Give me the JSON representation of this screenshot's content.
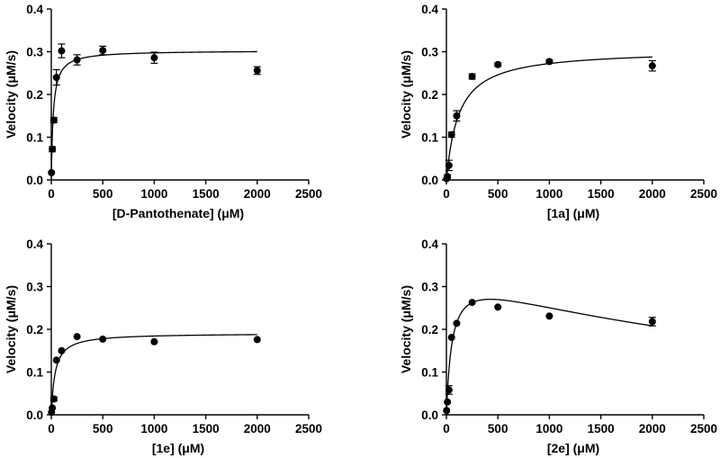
{
  "chart_data": [
    {
      "type": "scatter",
      "xlabel": "[D-Pantothenate] (μM)",
      "ylabel": "Velocity (μM/s)",
      "xlim": [
        0,
        2500
      ],
      "ylim": [
        0,
        0.4
      ],
      "xticks": [
        0,
        500,
        1000,
        1500,
        2000,
        2500
      ],
      "yticks": [
        0.0,
        0.1,
        0.2,
        0.3,
        0.4
      ],
      "grid": false,
      "points": [
        {
          "x": 2,
          "y": 0.017,
          "err": 0
        },
        {
          "x": 10,
          "y": 0.072,
          "err": 0.006
        },
        {
          "x": 25,
          "y": 0.14,
          "err": 0.006
        },
        {
          "x": 50,
          "y": 0.24,
          "err": 0.018
        },
        {
          "x": 100,
          "y": 0.302,
          "err": 0.016
        },
        {
          "x": 250,
          "y": 0.281,
          "err": 0.012
        },
        {
          "x": 500,
          "y": 0.303,
          "err": 0.01
        },
        {
          "x": 1000,
          "y": 0.286,
          "err": 0.013
        },
        {
          "x": 2000,
          "y": 0.256,
          "err": 0.009
        }
      ],
      "fit": {
        "model": "michaelis-menten",
        "vmax": 0.303,
        "km": 19,
        "x_end": 2000
      }
    },
    {
      "type": "scatter",
      "xlabel": "[1a] (μM)",
      "ylabel": "Velocity (μM/s)",
      "xlim": [
        0,
        2500
      ],
      "ylim": [
        0,
        0.4
      ],
      "xticks": [
        0,
        500,
        1000,
        1500,
        2000,
        2500
      ],
      "yticks": [
        0.0,
        0.1,
        0.2,
        0.3,
        0.4
      ],
      "grid": false,
      "points": [
        {
          "x": 2,
          "y": 0.003,
          "err": 0
        },
        {
          "x": 10,
          "y": 0.008,
          "err": 0.004
        },
        {
          "x": 25,
          "y": 0.034,
          "err": 0.012
        },
        {
          "x": 50,
          "y": 0.106,
          "err": 0.006
        },
        {
          "x": 100,
          "y": 0.15,
          "err": 0.012
        },
        {
          "x": 250,
          "y": 0.242,
          "err": 0.006
        },
        {
          "x": 500,
          "y": 0.27,
          "err": 0.004
        },
        {
          "x": 1000,
          "y": 0.277,
          "err": 0.004
        },
        {
          "x": 2000,
          "y": 0.267,
          "err": 0.012
        }
      ],
      "fit": {
        "model": "michaelis-menten",
        "vmax": 0.305,
        "km": 120,
        "x_end": 2000
      }
    },
    {
      "type": "scatter",
      "xlabel": "[1e] (μM)",
      "ylabel": "Velocity (μM/s)",
      "xlim": [
        0,
        2500
      ],
      "ylim": [
        0,
        0.4
      ],
      "xticks": [
        0,
        500,
        1000,
        1500,
        2000,
        2500
      ],
      "yticks": [
        0.0,
        0.1,
        0.2,
        0.3,
        0.4
      ],
      "grid": false,
      "points": [
        {
          "x": 2,
          "y": 0.006,
          "err": 0
        },
        {
          "x": 10,
          "y": 0.016,
          "err": 0
        },
        {
          "x": 25,
          "y": 0.037,
          "err": 0.005
        },
        {
          "x": 50,
          "y": 0.128,
          "err": 0
        },
        {
          "x": 100,
          "y": 0.15,
          "err": 0
        },
        {
          "x": 250,
          "y": 0.183,
          "err": 0
        },
        {
          "x": 500,
          "y": 0.177,
          "err": 0
        },
        {
          "x": 1000,
          "y": 0.171,
          "err": 0
        },
        {
          "x": 2000,
          "y": 0.176,
          "err": 0
        }
      ],
      "fit": {
        "model": "michaelis-menten",
        "vmax": 0.191,
        "km": 36,
        "x_end": 2000
      }
    },
    {
      "type": "scatter",
      "xlabel": "[2e] (μM)",
      "ylabel": "Velocity (μM/s)",
      "xlim": [
        0,
        2500
      ],
      "ylim": [
        0,
        0.4
      ],
      "xticks": [
        0,
        500,
        1000,
        1500,
        2000,
        2500
      ],
      "yticks": [
        0.0,
        0.1,
        0.2,
        0.3,
        0.4
      ],
      "grid": false,
      "points": [
        {
          "x": 2,
          "y": 0.01,
          "err": 0
        },
        {
          "x": 10,
          "y": 0.03,
          "err": 0
        },
        {
          "x": 25,
          "y": 0.058,
          "err": 0.01
        },
        {
          "x": 50,
          "y": 0.181,
          "err": 0
        },
        {
          "x": 100,
          "y": 0.214,
          "err": 0
        },
        {
          "x": 250,
          "y": 0.263,
          "err": 0
        },
        {
          "x": 500,
          "y": 0.252,
          "err": 0
        },
        {
          "x": 1000,
          "y": 0.231,
          "err": 0
        },
        {
          "x": 2000,
          "y": 0.218,
          "err": 0.01
        }
      ],
      "fit": {
        "model": "substrate-inhibition",
        "vmax": 0.34,
        "km": 55,
        "ki": 3300,
        "x_end": 2000
      }
    }
  ]
}
